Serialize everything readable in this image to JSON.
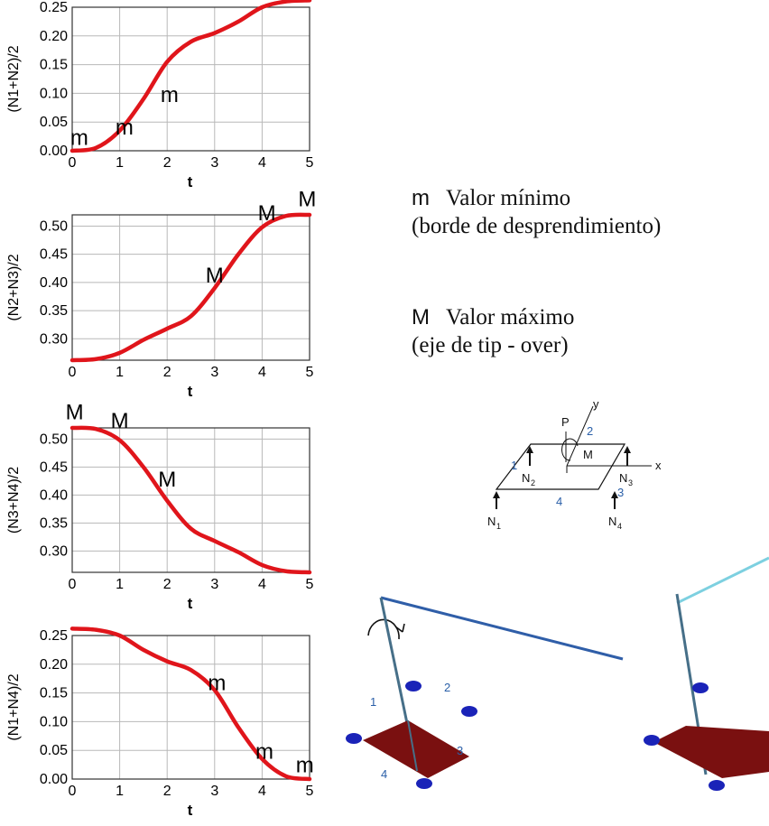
{
  "chart_data": [
    {
      "type": "line",
      "ylabel": "(N1+N2)/2",
      "xlabel": "t",
      "xlim": [
        0,
        5
      ],
      "ylim": [
        0,
        0.25
      ],
      "xticks": [
        "0",
        "1",
        "2",
        "3",
        "4",
        "5"
      ],
      "yticks": [
        "0.00",
        "0.05",
        "0.10",
        "0.15",
        "0.20",
        "0.25"
      ],
      "grid": true,
      "series": [
        {
          "x": [
            0,
            0.5,
            1,
            1.5,
            2,
            2.5,
            3,
            3.5,
            4,
            4.5,
            5
          ],
          "y": [
            0.0,
            0.005,
            0.035,
            0.09,
            0.155,
            0.19,
            0.205,
            0.225,
            0.25,
            0.26,
            0.262
          ]
        }
      ],
      "markers": [
        {
          "label": "m",
          "x": 0.15,
          "y": 0.01
        },
        {
          "label": "m",
          "x": 1.1,
          "y": 0.028
        },
        {
          "label": "m",
          "x": 2.05,
          "y": 0.085
        }
      ]
    },
    {
      "type": "line",
      "ylabel": "(N2+N3)/2",
      "xlabel": "t",
      "xlim": [
        0,
        5
      ],
      "ylim": [
        0.262,
        0.52
      ],
      "xticks": [
        "0",
        "1",
        "2",
        "3",
        "4",
        "5"
      ],
      "yticks": [
        "0.30",
        "0.35",
        "0.40",
        "0.45",
        "0.50"
      ],
      "grid": true,
      "series": [
        {
          "x": [
            0,
            0.5,
            1,
            1.5,
            2,
            2.5,
            3,
            3.5,
            4,
            4.5,
            5
          ],
          "y": [
            0.262,
            0.264,
            0.275,
            0.298,
            0.318,
            0.34,
            0.39,
            0.45,
            0.498,
            0.518,
            0.52
          ]
        }
      ],
      "markers": [
        {
          "label": "M",
          "x": 3.0,
          "y": 0.4
        },
        {
          "label": "M",
          "x": 4.1,
          "y": 0.51
        },
        {
          "label": "M",
          "x": 4.95,
          "y": 0.535
        }
      ]
    },
    {
      "type": "line",
      "ylabel": "(N3+N4)/2",
      "xlabel": "t",
      "xlim": [
        0,
        5
      ],
      "ylim": [
        0.262,
        0.52
      ],
      "xticks": [
        "0",
        "1",
        "2",
        "3",
        "4",
        "5"
      ],
      "yticks": [
        "0.30",
        "0.35",
        "0.40",
        "0.45",
        "0.50"
      ],
      "grid": true,
      "series": [
        {
          "x": [
            0,
            0.5,
            1,
            1.5,
            2,
            2.5,
            3,
            3.5,
            4,
            4.5,
            5
          ],
          "y": [
            0.52,
            0.518,
            0.498,
            0.45,
            0.39,
            0.34,
            0.318,
            0.298,
            0.275,
            0.264,
            0.262
          ]
        }
      ],
      "markers": [
        {
          "label": "M",
          "x": 0.05,
          "y": 0.535
        },
        {
          "label": "M",
          "x": 1.0,
          "y": 0.52
        },
        {
          "label": "M",
          "x": 2.0,
          "y": 0.415
        }
      ]
    },
    {
      "type": "line",
      "ylabel": "(N1+N4)/2",
      "xlabel": "t",
      "xlim": [
        0,
        5
      ],
      "ylim": [
        0,
        0.25
      ],
      "xticks": [
        "0",
        "1",
        "2",
        "3",
        "4",
        "5"
      ],
      "yticks": [
        "0.00",
        "0.05",
        "0.10",
        "0.15",
        "0.20",
        "0.25"
      ],
      "grid": true,
      "series": [
        {
          "x": [
            0,
            0.5,
            1,
            1.5,
            2,
            2.5,
            3,
            3.5,
            4,
            4.5,
            5
          ],
          "y": [
            0.262,
            0.26,
            0.25,
            0.225,
            0.205,
            0.19,
            0.155,
            0.09,
            0.035,
            0.005,
            0.0
          ]
        }
      ],
      "markers": [
        {
          "label": "m",
          "x": 3.05,
          "y": 0.155
        },
        {
          "label": "m",
          "x": 4.05,
          "y": 0.035
        },
        {
          "label": "m",
          "x": 4.9,
          "y": 0.012
        }
      ]
    }
  ],
  "colors": {
    "curve": "#e0151b",
    "grid": "#b8b8b8",
    "platform": "#7a1010",
    "wheel": "#1a23b8",
    "number_label": "#2a5fa8",
    "beam_dark": "#2f5ea8",
    "beam_light": "#7dd0e0"
  },
  "legend": {
    "min_symbol": "m",
    "min_label": "Valor mínimo",
    "min_desc": "(borde de desprendimiento)",
    "max_symbol": "M",
    "max_label": "Valor máximo",
    "max_desc": "(eje de tip - over)"
  },
  "diagram": {
    "labels": [
      "y",
      "P",
      "2",
      "M",
      "x",
      "1",
      "N",
      "2",
      "N",
      "3",
      "4",
      "3",
      "N",
      "1",
      "N",
      "4"
    ]
  },
  "robot_numbers": [
    "1",
    "2",
    "3",
    "4"
  ]
}
